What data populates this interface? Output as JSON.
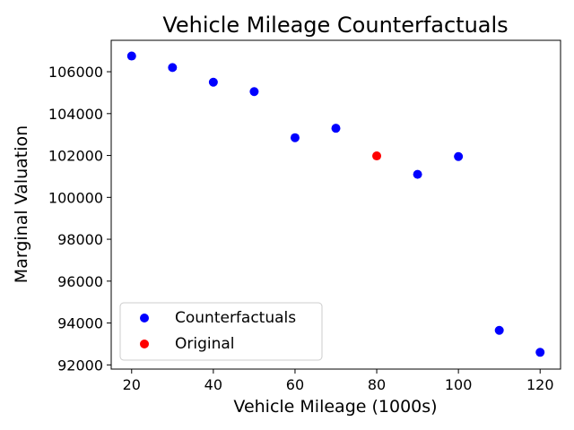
{
  "chart_data": {
    "type": "scatter",
    "title": "Vehicle Mileage Counterfactuals",
    "xlabel": "Vehicle Mileage (1000s)",
    "ylabel": "Marginal Valuation",
    "xlim": [
      15,
      125
    ],
    "ylim": [
      91800,
      107500
    ],
    "xticks": [
      20,
      40,
      60,
      80,
      100,
      120
    ],
    "yticks": [
      92000,
      94000,
      96000,
      98000,
      100000,
      102000,
      104000,
      106000
    ],
    "grid": false,
    "legend_position": "lower-left",
    "series": [
      {
        "name": "Counterfactuals",
        "color": "#0000ff",
        "points": [
          {
            "x": 20,
            "y": 106750
          },
          {
            "x": 30,
            "y": 106200
          },
          {
            "x": 40,
            "y": 105500
          },
          {
            "x": 50,
            "y": 105050
          },
          {
            "x": 60,
            "y": 102850
          },
          {
            "x": 70,
            "y": 103300
          },
          {
            "x": 90,
            "y": 101100
          },
          {
            "x": 100,
            "y": 101950
          },
          {
            "x": 110,
            "y": 93650
          },
          {
            "x": 120,
            "y": 92600
          }
        ]
      },
      {
        "name": "Original",
        "color": "#ff0000",
        "points": [
          {
            "x": 80,
            "y": 101980
          }
        ]
      }
    ]
  }
}
